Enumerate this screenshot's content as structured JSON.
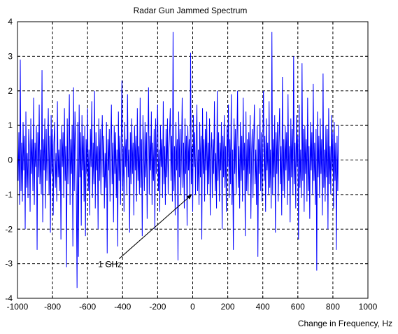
{
  "chart_data": {
    "type": "line",
    "title": "Radar Gun Jammed Spectrum",
    "xlabel": "Change in Frequency, Hz",
    "ylabel": "",
    "xlim": [
      -1000,
      1000
    ],
    "ylim": [
      -4,
      4
    ],
    "x_ticks": [
      -1000,
      -800,
      -600,
      -400,
      -200,
      0,
      200,
      400,
      600,
      800,
      1000
    ],
    "y_ticks": [
      -4,
      -3,
      -2,
      -1,
      0,
      1,
      2,
      3,
      4
    ],
    "grid": true,
    "line_color": "#0000ff",
    "series": [
      {
        "x_start": -1000,
        "x_step": 4,
        "values": [
          0.4,
          -0.6,
          0.8,
          -1.3,
          2.9,
          -0.9,
          0.5,
          -1.2,
          1.1,
          -0.3,
          0.7,
          -2.0,
          1.4,
          -0.8,
          0.2,
          -1.1,
          0.9,
          0.3,
          -1.5,
          1.2,
          -0.4,
          0.6,
          -0.9,
          1.8,
          -1.3,
          0.5,
          -0.2,
          1.0,
          -2.6,
          0.8,
          -0.5,
          1.6,
          -0.7,
          0.3,
          -1.0,
          2.6,
          -1.8,
          0.6,
          -0.3,
          1.2,
          -1.4,
          0.9,
          -0.6,
          0.4,
          1.5,
          -1.0,
          0.7,
          -2.1,
          1.3,
          -0.4,
          0.9,
          -1.6,
          0.5,
          1.1,
          -0.8,
          0.2,
          -1.2,
          1.7,
          -0.5,
          0.3,
          -0.9,
          0.6,
          -2.3,
          1.0,
          -0.2,
          0.8,
          -1.1,
          1.5,
          -0.6,
          0.4,
          -3.1,
          1.2,
          -0.7,
          0.3,
          1.9,
          -1.3,
          0.6,
          -0.4,
          1.0,
          -2.5,
          2.1,
          -0.9,
          1.4,
          0.5,
          -1.0,
          -3.7,
          1.1,
          -2.8,
          1.6,
          -0.5,
          0.8,
          -1.9,
          1.3,
          -0.3,
          0.7,
          -1.2,
          1.0,
          -2.2,
          0.6,
          -0.4,
          1.5,
          -0.9,
          0.3,
          -1.6,
          0.9,
          -0.2,
          1.7,
          -1.1,
          0.5,
          -0.7,
          2.0,
          -1.4,
          0.8,
          -0.3,
          0.4,
          -2.0,
          1.2,
          -0.6,
          0.9,
          -1.0,
          0.3,
          1.3,
          -0.5,
          0.7,
          -1.4,
          0.2,
          -0.8,
          1.1,
          -2.7,
          0.6,
          -0.3,
          0.9,
          -1.2,
          0.4,
          1.6,
          -0.7,
          0.5,
          -1.8,
          1.0,
          -0.4,
          0.8,
          -1.1,
          0.3,
          -2.5,
          1.4,
          -0.6,
          0.7,
          -1.3,
          0.5,
          2.3,
          -0.9,
          0.4,
          -1.5,
          1.1,
          -0.2,
          0.6,
          -1.0,
          1.9,
          -0.5,
          0.3,
          -2.1,
          0.8,
          -0.7,
          1.2,
          -0.4,
          0.5,
          -1.6,
          1.0,
          -0.3,
          0.7,
          -1.2,
          1.5,
          -0.6,
          0.4,
          -1.0,
          1.8,
          -0.8,
          0.6,
          -2.2,
          1.3,
          0.2,
          -0.9,
          1.1,
          -0.5,
          0.8,
          -1.7,
          0.4,
          2.1,
          -1.0,
          0.7,
          -0.3,
          1.4,
          -1.3,
          0.5,
          -0.6,
          0.9,
          -2.0,
          1.2,
          -0.4,
          0.8,
          1.6,
          -0.9,
          0.3,
          -1.5,
          1.0,
          -0.2,
          0.6,
          -1.1,
          1.7,
          -0.7,
          0.4,
          -1.3,
          0.9,
          -0.5,
          1.2,
          -1.0,
          0.3,
          0.8,
          1.5,
          -0.6,
          0.7,
          -1.2,
          3.7,
          -0.9,
          0.4,
          -1.6,
          1.1,
          -0.3,
          0.6,
          -2.9,
          1.4,
          -0.5,
          0.9,
          -1.0,
          0.2,
          1.8,
          -0.8,
          0.5,
          -1.4,
          1.2,
          -0.4,
          0.7,
          -1.9,
          1.0,
          -0.3,
          0.6,
          -1.1,
          3.1,
          -0.7,
          0.4,
          -1.5,
          1.3,
          -0.2,
          0.8,
          -1.0,
          0.5,
          1.6,
          -0.9,
          0.3,
          -1.3,
          1.1,
          -0.5,
          0.7,
          -2.3,
          1.5,
          -0.4,
          0.6,
          -1.2,
          0.9,
          -0.3,
          1.4,
          -1.0,
          0.5,
          -0.7,
          1.2,
          -1.6,
          0.3,
          0.8,
          -1.1,
          0.6,
          -0.4,
          1.7,
          -0.9,
          0.2,
          -1.4,
          2.0,
          -0.6,
          0.8,
          -1.2,
          0.5,
          -0.3,
          1.1,
          -2.0,
          0.7,
          -0.5,
          1.3,
          -0.8,
          0.4,
          -1.5,
          1.0,
          -0.2,
          1.6,
          -1.1,
          0.6,
          -0.7,
          1.9,
          -1.3,
          0.3,
          -2.6,
          1.2,
          -0.4,
          0.9,
          -1.0,
          0.5,
          2.0,
          -0.8,
          0.4,
          -1.4,
          1.1,
          -0.6,
          0.7,
          -1.2,
          1.8,
          -0.3,
          0.5,
          -2.2,
          1.4,
          -0.9,
          0.6,
          -1.0,
          0.8,
          -0.4,
          1.3,
          -1.7,
          0.2,
          0.9,
          -1.1,
          0.5,
          1.6,
          -0.7,
          0.3,
          -1.3,
          1.0,
          -2.8,
          0.6,
          -0.4,
          1.5,
          -0.9,
          0.8,
          -1.2,
          0.4,
          2.0,
          -0.6,
          0.7,
          -1.5,
          1.2,
          -0.3,
          0.5,
          -1.0,
          1.7,
          -0.8,
          0.3,
          -1.4,
          3.7,
          -1.0,
          0.6,
          -0.5,
          1.3,
          -2.1,
          0.8,
          -0.4,
          1.1,
          -1.2,
          0.5,
          1.5,
          -0.7,
          0.4,
          -1.6,
          2.4,
          -0.9,
          0.6,
          -1.1,
          1.0,
          -0.3,
          0.8,
          -1.3,
          1.9,
          -0.6,
          0.4,
          -1.8,
          1.2,
          -0.5,
          0.9,
          -1.0,
          3.0,
          -0.7,
          0.5,
          -1.4,
          1.3,
          -0.2,
          0.7,
          -2.3,
          1.6,
          -0.8,
          0.3,
          -1.1,
          2.8,
          -0.6,
          0.9,
          -1.5,
          1.0,
          -0.4,
          0.6,
          -1.2,
          1.8,
          -0.9,
          0.4,
          -1.7,
          1.1,
          -0.3,
          0.8,
          -1.0,
          2.2,
          -0.6,
          0.5,
          -1.3,
          0.9,
          -3.2,
          1.4,
          -0.5,
          0.7,
          -1.1,
          1.2,
          -0.4,
          0.6,
          -1.6,
          2.5,
          -0.8,
          0.3,
          -1.2,
          1.0,
          -0.5,
          0.9,
          -2.0,
          1.5,
          -0.7,
          0.4,
          -1.0,
          1.3,
          -0.3,
          0.8,
          -1.4,
          1.1,
          -0.6,
          0.5,
          -2.6,
          0.7,
          -0.9,
          1.0
        ],
        "name": ""
      }
    ],
    "annotations": [
      {
        "text": "1 GHz",
        "text_x": -540,
        "text_y": -3.1,
        "arrow_to_x": -5,
        "arrow_to_y": -1.0
      }
    ]
  }
}
